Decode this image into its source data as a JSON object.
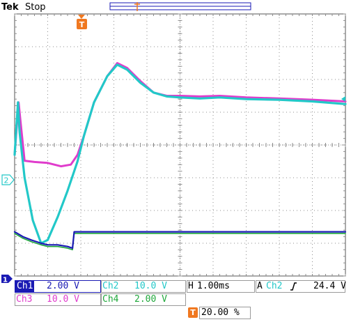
{
  "header": {
    "brand": "Tek",
    "run_state": "Stop",
    "trigger_marker_top": "T"
  },
  "markers": {
    "ch2_ground": "2",
    "ch1_ground": "1"
  },
  "colors": {
    "ch1": "#1a1ab4",
    "ch2": "#22c8c8",
    "ch3": "#e03ccc",
    "ch4": "#1fa83a",
    "trigger": "#f07820",
    "grid": "#8c8c8c",
    "border": "#555555"
  },
  "readouts": {
    "ch1": {
      "label": "Ch1",
      "value": "2.00 V"
    },
    "ch2": {
      "label": "Ch2",
      "value": "10.0 V"
    },
    "ch3": {
      "label": "Ch3",
      "value": "10.0 V"
    },
    "ch4": {
      "label": "Ch4",
      "value": "2.00 V"
    },
    "horizontal": {
      "label": "H",
      "value": "1.00ms"
    },
    "trigger": {
      "label": "A",
      "source": "Ch2",
      "slope_icon": "rising-edge-icon",
      "level": "24.4 V"
    },
    "position": {
      "label": "T",
      "value": "20.00 %"
    }
  },
  "chart_data": {
    "type": "line",
    "x_divisions": 10,
    "y_divisions": 8,
    "xlim": [
      0,
      10
    ],
    "ylim": [
      -4,
      4
    ],
    "series": [
      {
        "name": "Ch3",
        "x": [
          0.0,
          0.12,
          0.2,
          0.3,
          0.6,
          1.0,
          1.4,
          1.7,
          1.9,
          2.1,
          2.4,
          2.8,
          3.1,
          3.4,
          3.8,
          4.2,
          4.6,
          5.0,
          5.6,
          6.2,
          7.0,
          8.0,
          9.0,
          10.0
        ],
        "y": [
          -0.3,
          1.3,
          0.5,
          -0.48,
          -0.52,
          -0.55,
          -0.65,
          -0.6,
          -0.3,
          0.3,
          1.3,
          2.1,
          2.5,
          2.35,
          1.95,
          1.6,
          1.5,
          1.5,
          1.48,
          1.5,
          1.45,
          1.42,
          1.38,
          1.33
        ]
      },
      {
        "name": "Ch2",
        "x": [
          0.0,
          0.1,
          0.15,
          0.3,
          0.55,
          0.8,
          1.0,
          1.3,
          1.6,
          1.9,
          2.1,
          2.4,
          2.8,
          3.1,
          3.4,
          3.8,
          4.2,
          4.6,
          5.0,
          5.6,
          6.2,
          7.0,
          8.0,
          9.0,
          10.0
        ],
        "y": [
          -0.3,
          1.3,
          0.4,
          -1.0,
          -2.3,
          -3.0,
          -2.9,
          -2.2,
          -1.4,
          -0.5,
          0.3,
          1.3,
          2.1,
          2.45,
          2.3,
          1.9,
          1.6,
          1.48,
          1.45,
          1.42,
          1.45,
          1.4,
          1.38,
          1.33,
          1.25
        ]
      },
      {
        "name": "Ch1",
        "x": [
          0.0,
          0.25,
          0.5,
          0.8,
          1.0,
          1.3,
          1.6,
          1.75,
          1.8,
          2.5,
          4.0,
          6.0,
          8.0,
          10.0
        ],
        "y": [
          -2.65,
          -2.8,
          -2.9,
          -3.0,
          -3.05,
          -3.05,
          -3.1,
          -3.15,
          -2.65,
          -2.65,
          -2.65,
          -2.65,
          -2.65,
          -2.65
        ]
      },
      {
        "name": "Ch4",
        "x": [
          0.0,
          0.25,
          0.5,
          0.8,
          1.0,
          1.3,
          1.6,
          1.75,
          1.8,
          2.5,
          4.0,
          6.0,
          8.0,
          10.0
        ],
        "y": [
          -2.7,
          -2.85,
          -2.95,
          -3.05,
          -3.1,
          -3.1,
          -3.15,
          -3.2,
          -2.7,
          -2.7,
          -2.7,
          -2.7,
          -2.7,
          -2.7
        ]
      }
    ]
  }
}
